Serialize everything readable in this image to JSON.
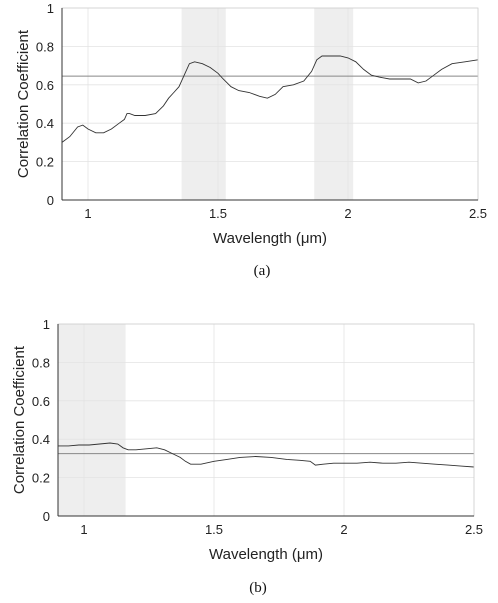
{
  "chart_data": [
    {
      "type": "line",
      "caption": "(a)",
      "xlabel_prefix": "Wavelength (",
      "xlabel_unit": "μ",
      "xlabel_suffix": "m)",
      "ylabel": "Correlation Coefficient",
      "xlim": [
        0.9,
        2.5
      ],
      "ylim": [
        0,
        1
      ],
      "xticks": [
        1,
        1.5,
        2,
        2.5
      ],
      "xtick_labels": [
        "1",
        "1.5",
        "2",
        "2.5"
      ],
      "yticks": [
        0,
        0.2,
        0.4,
        0.6,
        0.8,
        1
      ],
      "ytick_labels": [
        "0",
        "0.2",
        "0.4",
        "0.6",
        "0.8",
        "1"
      ],
      "grid": true,
      "shaded_bands": [
        [
          1.36,
          1.53
        ],
        [
          1.87,
          2.02
        ]
      ],
      "reference_line": 0.645,
      "colors": {
        "line": "#333333",
        "band": "#eeeeee",
        "grid": "#e3e3e3",
        "ref": "#888888"
      },
      "series": [
        {
          "x": [
            0.9,
            0.93,
            0.96,
            0.98,
            1.0,
            1.03,
            1.06,
            1.09,
            1.12,
            1.14,
            1.15,
            1.16,
            1.18,
            1.22,
            1.26,
            1.29,
            1.31,
            1.33,
            1.35,
            1.37,
            1.39,
            1.41,
            1.44,
            1.47,
            1.5,
            1.52,
            1.55,
            1.58,
            1.62,
            1.66,
            1.69,
            1.72,
            1.75,
            1.79,
            1.83,
            1.86,
            1.88,
            1.9,
            1.93,
            1.97,
            2.0,
            2.03,
            2.06,
            2.09,
            2.12,
            2.16,
            2.2,
            2.24,
            2.27,
            2.3,
            2.33,
            2.36,
            2.4,
            2.45,
            2.5
          ],
          "y": [
            0.3,
            0.33,
            0.38,
            0.39,
            0.37,
            0.35,
            0.35,
            0.37,
            0.4,
            0.42,
            0.45,
            0.45,
            0.44,
            0.44,
            0.45,
            0.49,
            0.53,
            0.56,
            0.59,
            0.65,
            0.71,
            0.72,
            0.71,
            0.69,
            0.66,
            0.63,
            0.59,
            0.57,
            0.56,
            0.54,
            0.53,
            0.55,
            0.59,
            0.6,
            0.62,
            0.67,
            0.73,
            0.75,
            0.75,
            0.75,
            0.74,
            0.72,
            0.68,
            0.65,
            0.64,
            0.63,
            0.63,
            0.63,
            0.61,
            0.62,
            0.65,
            0.68,
            0.71,
            0.72,
            0.73
          ]
        }
      ]
    },
    {
      "type": "line",
      "caption": "(b)",
      "xlabel_prefix": "Wavelength (",
      "xlabel_unit": "μ",
      "xlabel_suffix": "m)",
      "ylabel": "Correlation Coefficient",
      "xlim": [
        0.9,
        2.5
      ],
      "ylim": [
        0,
        1
      ],
      "xticks": [
        1,
        1.5,
        2,
        2.5
      ],
      "xtick_labels": [
        "1",
        "1.5",
        "2",
        "2.5"
      ],
      "yticks": [
        0,
        0.2,
        0.4,
        0.6,
        0.8,
        1
      ],
      "ytick_labels": [
        "0",
        "0.2",
        "0.4",
        "0.6",
        "0.8",
        "1"
      ],
      "grid": true,
      "shaded_bands": [
        [
          0.9,
          1.16
        ]
      ],
      "reference_line": 0.325,
      "colors": {
        "line": "#333333",
        "band": "#eeeeee",
        "grid": "#e3e3e3",
        "ref": "#888888"
      },
      "series": [
        {
          "x": [
            0.9,
            0.94,
            0.98,
            1.02,
            1.06,
            1.1,
            1.13,
            1.15,
            1.17,
            1.2,
            1.24,
            1.28,
            1.31,
            1.34,
            1.37,
            1.39,
            1.41,
            1.45,
            1.5,
            1.55,
            1.6,
            1.66,
            1.72,
            1.78,
            1.83,
            1.87,
            1.89,
            1.92,
            1.96,
            2.0,
            2.05,
            2.1,
            2.15,
            2.2,
            2.25,
            2.3,
            2.35,
            2.4,
            2.45,
            2.5
          ],
          "y": [
            0.365,
            0.365,
            0.37,
            0.37,
            0.375,
            0.38,
            0.375,
            0.355,
            0.345,
            0.345,
            0.35,
            0.355,
            0.345,
            0.325,
            0.305,
            0.285,
            0.27,
            0.27,
            0.285,
            0.295,
            0.305,
            0.31,
            0.305,
            0.295,
            0.29,
            0.285,
            0.265,
            0.27,
            0.275,
            0.275,
            0.275,
            0.28,
            0.275,
            0.275,
            0.28,
            0.275,
            0.27,
            0.265,
            0.26,
            0.255
          ]
        }
      ]
    }
  ]
}
